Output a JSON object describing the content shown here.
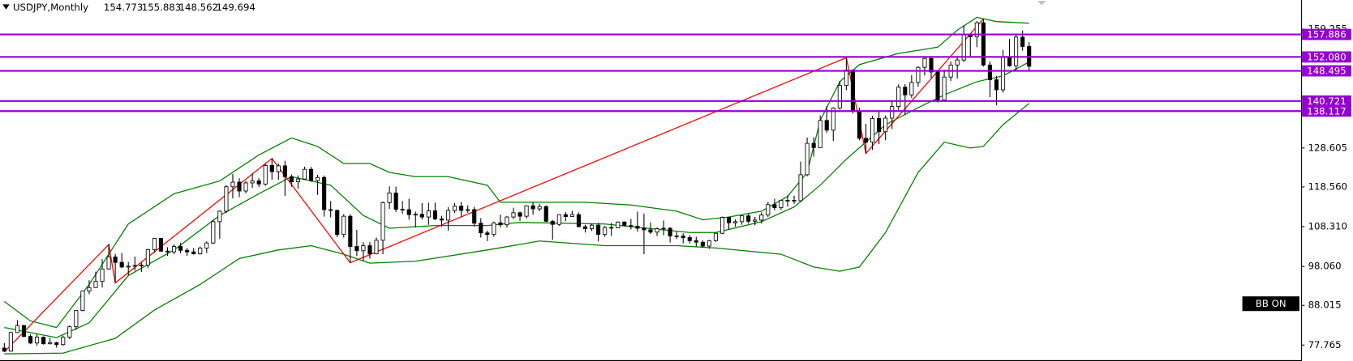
{
  "chart_data": {
    "type": "candlestick",
    "title": "USDJPY,Monthly",
    "open": [
      77.0,
      76.2,
      81.0,
      82.8,
      80.0,
      78.3,
      79.8,
      78.1,
      78.4,
      77.9,
      79.8,
      82.5,
      86.7,
      91.7,
      92.6,
      94.2,
      97.4,
      100.5,
      99.1,
      97.9,
      98.1,
      98.3,
      98.4,
      102.4,
      105.3,
      102.0,
      101.8,
      103.2,
      102.2,
      101.8,
      101.3,
      102.8,
      104.1,
      109.6,
      112.3,
      118.6,
      119.8,
      117.5,
      119.6,
      120.1,
      119.3,
      124.1,
      122.5,
      124.0,
      121.2,
      119.9,
      120.6,
      123.1,
      120.2,
      121.0,
      112.7,
      112.5,
      106.3,
      111.0,
      103.2,
      102.1,
      103.4,
      101.3,
      104.8,
      114.5,
      117.0,
      112.8,
      112.7,
      111.4,
      111.5,
      110.8,
      112.4,
      110.3,
      110.0,
      112.5,
      113.6,
      112.5,
      112.7,
      109.2,
      106.7,
      106.3,
      109.3,
      108.8,
      110.8,
      111.9,
      111.0,
      113.7,
      112.9,
      113.5,
      109.7,
      108.9,
      111.4,
      110.9,
      111.4,
      108.3,
      107.8,
      108.7,
      106.3,
      108.1,
      108.0,
      109.5,
      108.6,
      108.4,
      107.9,
      107.5,
      106.9,
      107.8,
      107.9,
      105.9,
      105.9,
      105.5,
      104.7,
      104.3,
      103.3,
      104.7,
      106.6,
      110.7,
      109.3,
      109.6,
      111.1,
      109.7,
      110.0,
      111.3,
      114.0,
      113.2,
      115.1,
      115.1,
      115.0,
      121.7,
      129.8,
      128.7,
      135.7,
      133.2,
      138.9,
      144.7,
      148.7,
      138.1,
      131.1,
      130.1,
      136.2,
      132.8,
      136.3,
      139.3,
      144.3,
      142.3,
      145.5,
      149.4,
      151.7,
      148.2,
      141.0,
      146.9,
      150.0,
      151.3,
      157.8,
      157.3,
      160.9,
      150.0,
      146.2,
      143.6,
      152.0,
      149.8,
      157.2,
      154.773
    ],
    "high": [
      78.3,
      81.2,
      84.2,
      83.0,
      80.5,
      80.6,
      80.0,
      79.6,
      78.6,
      80.2,
      82.8,
      86.8,
      91.8,
      94.5,
      96.7,
      99.9,
      103.7,
      101.3,
      101.5,
      99.2,
      100.6,
      99.0,
      102.6,
      105.4,
      105.4,
      103.0,
      103.8,
      104.1,
      102.8,
      102.8,
      103.2,
      104.5,
      110.1,
      112.5,
      119.0,
      121.9,
      120.8,
      120.1,
      122.0,
      120.8,
      124.5,
      125.9,
      124.6,
      125.3,
      121.8,
      121.5,
      123.8,
      123.7,
      121.7,
      121.5,
      114.9,
      112.7,
      111.5,
      111.5,
      107.5,
      104.3,
      104.3,
      105.5,
      114.8,
      118.7,
      118.6,
      114.9,
      115.5,
      112.2,
      114.4,
      114.5,
      114.5,
      111.1,
      113.3,
      114.4,
      114.7,
      113.8,
      113.4,
      110.5,
      107.3,
      109.6,
      111.4,
      111.0,
      113.2,
      112.2,
      113.8,
      114.6,
      114.2,
      113.8,
      110.0,
      111.5,
      112.1,
      112.4,
      112.0,
      108.8,
      109.0,
      109.3,
      108.5,
      109.3,
      109.7,
      109.7,
      110.3,
      112.2,
      111.7,
      109.4,
      108.1,
      109.9,
      108.2,
      107.0,
      106.6,
      106.1,
      105.7,
      104.8,
      104.9,
      106.7,
      110.9,
      110.9,
      110.2,
      111.2,
      111.7,
      110.8,
      112.0,
      114.7,
      115.5,
      115.2,
      116.4,
      116.3,
      125.1,
      131.3,
      131.4,
      137.0,
      139.4,
      139.1,
      145.9,
      151.9,
      148.8,
      139.0,
      134.8,
      136.9,
      138.0,
      137.0,
      140.9,
      145.0,
      145.1,
      147.4,
      149.7,
      151.8,
      151.9,
      148.4,
      148.8,
      150.9,
      151.9,
      160.2,
      157.9,
      161.3,
      161.9,
      150.9,
      147.2,
      153.9,
      156.7,
      158.1,
      158.9,
      155.883
    ],
    "low": [
      76.0,
      76.1,
      80.9,
      79.8,
      78.0,
      77.6,
      77.9,
      78.0,
      77.1,
      77.6,
      79.3,
      81.7,
      86.5,
      90.9,
      92.5,
      92.6,
      97.2,
      93.8,
      97.6,
      95.8,
      97.0,
      96.6,
      97.6,
      101.6,
      101.8,
      100.8,
      101.2,
      101.4,
      100.8,
      101.1,
      101.1,
      101.5,
      103.8,
      105.2,
      111.8,
      115.6,
      115.9,
      116.9,
      118.3,
      118.5,
      118.9,
      120.4,
      120.4,
      116.2,
      118.6,
      118.1,
      120.5,
      119.9,
      116.5,
      110.9,
      110.7,
      105.6,
      105.5,
      99.0,
      100.7,
      99.5,
      100.1,
      101.2,
      101.2,
      112.9,
      112.1,
      111.6,
      110.1,
      108.1,
      110.2,
      108.8,
      110.0,
      108.3,
      107.3,
      111.8,
      110.8,
      111.9,
      108.3,
      105.5,
      104.6,
      105.7,
      108.1,
      108.1,
      110.3,
      109.8,
      110.4,
      111.4,
      112.3,
      109.5,
      104.9,
      108.5,
      109.7,
      110.8,
      108.2,
      106.8,
      107.2,
      104.5,
      105.7,
      105.9,
      107.9,
      108.4,
      107.6,
      107.0,
      101.2,
      106.4,
      105.9,
      106.1,
      104.2,
      105.1,
      104.0,
      104.0,
      103.2,
      102.9,
      102.6,
      104.4,
      106.4,
      107.5,
      108.3,
      108.8,
      109.1,
      108.7,
      109.1,
      110.8,
      112.5,
      112.6,
      113.5,
      114.2,
      114.7,
      121.3,
      126.4,
      128.6,
      132.5,
      130.4,
      138.5,
      143.5,
      137.5,
      130.6,
      127.2,
      128.1,
      129.6,
      130.6,
      133.5,
      138.4,
      137.2,
      141.5,
      144.4,
      147.3,
      146.7,
      140.3,
      140.8,
      145.9,
      146.5,
      150.8,
      151.9,
      154.6,
      149.6,
      141.7,
      139.6,
      142.9,
      149.5,
      148.6,
      153.7,
      148.562
    ],
    "close": [
      76.2,
      81.0,
      82.8,
      80.0,
      78.3,
      79.8,
      78.1,
      78.4,
      77.9,
      79.8,
      82.5,
      86.7,
      91.7,
      92.6,
      94.2,
      97.4,
      100.5,
      99.1,
      97.9,
      98.1,
      98.3,
      98.4,
      102.4,
      105.3,
      102.0,
      101.8,
      103.2,
      102.2,
      101.8,
      101.3,
      102.8,
      104.1,
      109.6,
      112.3,
      118.6,
      119.8,
      117.5,
      119.6,
      120.1,
      119.3,
      124.1,
      122.5,
      124.0,
      121.2,
      119.9,
      120.6,
      123.1,
      120.2,
      121.0,
      112.7,
      112.5,
      106.3,
      111.0,
      103.2,
      102.1,
      103.4,
      101.3,
      104.8,
      114.5,
      117.0,
      112.8,
      112.7,
      111.4,
      111.5,
      110.8,
      112.4,
      110.3,
      110.0,
      112.5,
      113.6,
      112.5,
      112.7,
      109.2,
      106.7,
      106.3,
      109.3,
      108.8,
      110.8,
      111.9,
      111.0,
      113.7,
      112.9,
      113.5,
      109.7,
      108.9,
      111.4,
      110.9,
      111.4,
      108.3,
      107.8,
      108.7,
      106.3,
      108.1,
      108.0,
      109.5,
      108.6,
      108.4,
      107.9,
      107.5,
      106.9,
      107.8,
      107.9,
      105.9,
      105.9,
      105.5,
      104.7,
      104.3,
      103.3,
      104.7,
      106.6,
      110.7,
      109.3,
      109.6,
      111.1,
      109.7,
      110.0,
      111.3,
      114.0,
      113.2,
      115.1,
      115.1,
      115.0,
      121.7,
      129.8,
      128.7,
      135.7,
      133.2,
      138.9,
      144.7,
      148.7,
      138.1,
      131.1,
      130.1,
      136.2,
      132.8,
      136.3,
      139.3,
      144.3,
      142.3,
      145.5,
      149.4,
      151.7,
      148.2,
      141.0,
      146.9,
      150.0,
      151.3,
      157.8,
      157.3,
      160.9,
      150.0,
      146.2,
      143.6,
      152.0,
      149.8,
      157.2,
      154.773,
      149.694
    ],
    "bull_color": "#ffffff",
    "bear_color": "#000000",
    "ylim": [
      73.66,
      166.77
    ],
    "yticks": [
      159.255,
      128.605,
      {
        "value": 118.56,
        "label": "118.560"
      },
      {
        "value": 108.31,
        "label": "108.310"
      },
      {
        "value": 98.06,
        "label": "98.060"
      },
      88.015,
      77.765
    ],
    "grid": false,
    "series": [
      {
        "type": "line",
        "color": "#008000",
        "x": [
          0,
          4,
          8,
          13,
          19,
          26,
          33,
          39,
          44,
          48,
          52,
          56,
          59,
          63,
          68,
          74,
          76,
          82,
          89,
          96,
          103,
          107,
          111,
          116,
          120,
          123,
          125,
          128,
          131,
          137,
          143,
          146,
          149,
          152,
          157
        ],
        "values": [
          89.0,
          84.0,
          82.3,
          93.4,
          109.0,
          116.8,
          120.1,
          126.8,
          131.2,
          129.0,
          124.6,
          124.6,
          122.3,
          121.2,
          121.2,
          119.0,
          114.6,
          114.6,
          114.6,
          113.9,
          112.3,
          110.1,
          110.8,
          112.3,
          116.1,
          122.3,
          135.7,
          145.7,
          150.1,
          153.0,
          154.6,
          159.0,
          162.3,
          161.2,
          160.8
        ]
      },
      {
        "type": "line",
        "color": "#008000",
        "x": [
          0,
          8,
          13,
          19,
          26,
          33,
          39,
          44,
          50,
          55,
          59,
          66,
          74,
          79,
          92,
          105,
          109,
          116,
          121,
          125,
          129,
          135,
          140,
          144,
          149,
          153,
          157
        ],
        "values": [
          82.3,
          79.7,
          83.5,
          95.7,
          102.3,
          111.2,
          116.8,
          121.2,
          119.0,
          111.2,
          107.9,
          108.6,
          108.6,
          109.4,
          109.0,
          106.8,
          106.8,
          109.6,
          113.4,
          119.0,
          125.7,
          134.6,
          139.0,
          142.3,
          145.7,
          147.2,
          150.8
        ]
      },
      {
        "type": "line",
        "color": "#008000",
        "x": [
          0,
          9,
          17,
          23,
          30,
          36,
          42,
          47,
          52,
          56,
          63,
          74,
          82,
          92,
          103,
          109,
          119,
          124,
          128,
          131,
          135,
          140,
          144,
          148,
          150,
          153,
          157
        ],
        "values": [
          75.5,
          75.7,
          79.5,
          86.8,
          93.4,
          100.1,
          102.3,
          103.4,
          101.2,
          98.9,
          99.4,
          102.3,
          104.6,
          103.4,
          103.4,
          102.8,
          101.2,
          97.9,
          96.8,
          97.9,
          106.8,
          122.3,
          130.1,
          128.6,
          129.0,
          134.6,
          140.1
        ]
      },
      {
        "type": "line",
        "color": "#ff0000",
        "x": [
          0,
          16,
          17,
          41,
          53,
          129,
          132,
          150
        ],
        "values": [
          76.0,
          103.7,
          93.8,
          125.9,
          99.0,
          151.9,
          127.2,
          161.9
        ]
      }
    ],
    "levels": [
      {
        "value": 157.886,
        "color": "#9400d3"
      },
      {
        "value": {
          "value": 152.08,
          "label": "152.080"
        },
        "color": "#9400d3"
      },
      {
        "value": 148.495,
        "color": "#9400d3"
      },
      {
        "value": 140.721,
        "color": "#9400d3"
      },
      {
        "value": 138.117,
        "color": "#9400d3"
      }
    ],
    "badge": "BB ON"
  }
}
